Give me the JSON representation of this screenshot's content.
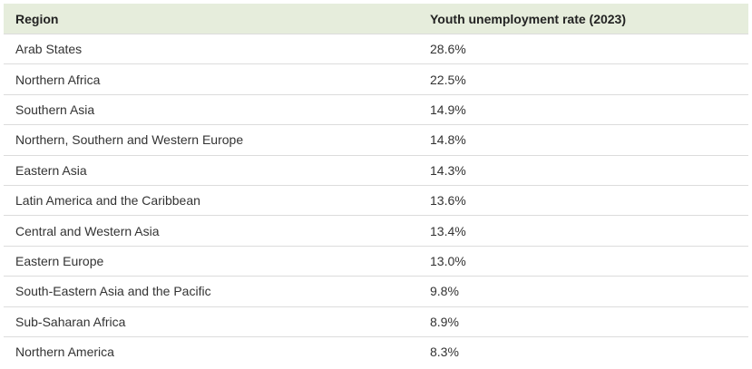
{
  "table": {
    "header": [
      "Region",
      "Youth unemployment rate (2023)"
    ],
    "rows": [
      [
        "Arab States",
        "28.6%"
      ],
      [
        "Northern Africa",
        "22.5%"
      ],
      [
        "Southern Asia",
        "14.9%"
      ],
      [
        "Northern, Southern and Western Europe",
        "14.8%"
      ],
      [
        "Eastern Asia",
        "14.3%"
      ],
      [
        "Latin America and the Caribbean",
        "13.6%"
      ],
      [
        "Central and Western Asia",
        "13.4%"
      ],
      [
        "Eastern Europe",
        "13.0%"
      ],
      [
        "South-Eastern Asia and the Pacific",
        "9.8%"
      ],
      [
        "Sub-Saharan Africa",
        "8.9%"
      ],
      [
        "Northern America",
        "8.3%"
      ]
    ]
  }
}
